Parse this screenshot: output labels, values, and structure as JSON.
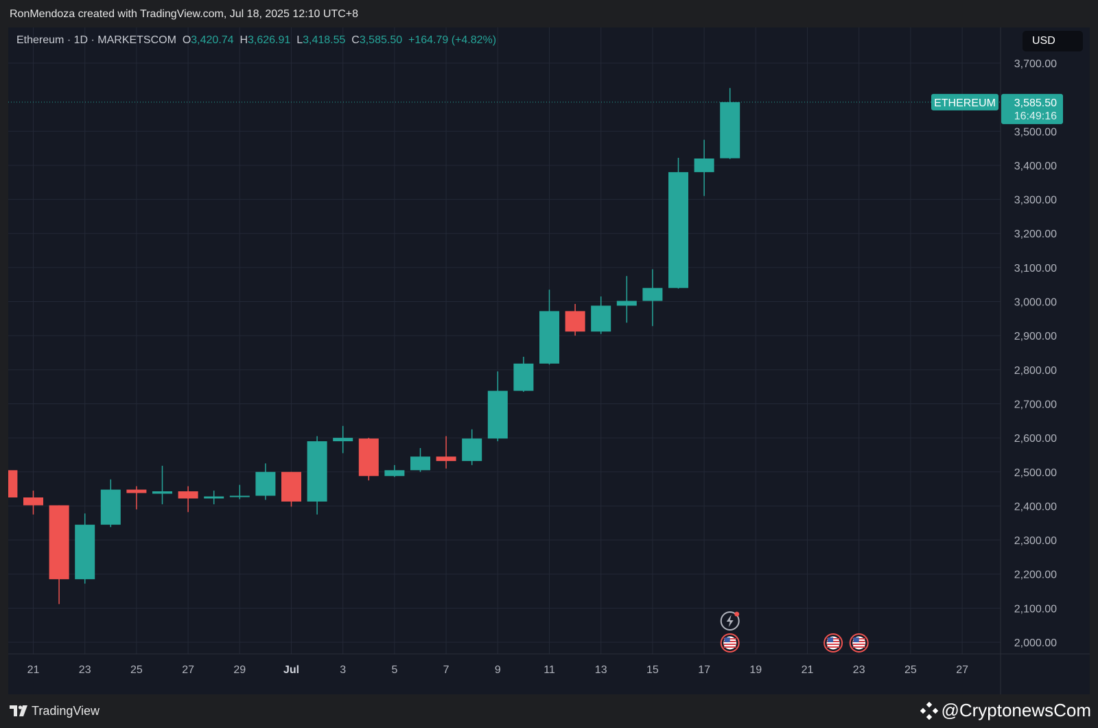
{
  "header": {
    "credit": "RonMendoza created with TradingView.com, Jul 18, 2025 12:10 UTC+8"
  },
  "legend": {
    "symbol": "Ethereum · 1D · MARKETSCOM",
    "o_label": "O",
    "o_value": "3,420.74",
    "h_label": "H",
    "h_value": "3,626.91",
    "l_label": "L",
    "l_value": "3,418.55",
    "c_label": "C",
    "c_value": "3,585.50",
    "change": "+164.79 (+4.82%)"
  },
  "currency_button": "USD",
  "price_tag": {
    "name": "ETHEREUM",
    "price": "3,585.50",
    "countdown": "16:49:16"
  },
  "footer": {
    "brand": "TradingView",
    "watermark": "@CryptonewsCom"
  },
  "colors": {
    "up": "#26a69a",
    "down": "#ef5350",
    "background": "#151924",
    "grid": "#232836",
    "axis_text": "#b2b5be"
  },
  "chart_data": {
    "type": "candlestick",
    "title": "Ethereum · 1D · MARKETSCOM",
    "x_tick_labels": [
      "21",
      "23",
      "25",
      "27",
      "29",
      "Jul",
      "3",
      "5",
      "7",
      "9",
      "11",
      "13",
      "15",
      "17",
      "19",
      "21",
      "23",
      "25",
      "27"
    ],
    "y_tick_labels": [
      "2,000.00",
      "2,100.00",
      "2,200.00",
      "2,300.00",
      "2,400.00",
      "2,500.00",
      "2,600.00",
      "2,700.00",
      "2,800.00",
      "2,900.00",
      "3,000.00",
      "3,100.00",
      "3,200.00",
      "3,300.00",
      "3,400.00",
      "3,500.00",
      "3,700.00"
    ],
    "ylim": [
      1970,
      3770
    ],
    "grid": true,
    "last_price": 3585.5,
    "candles": [
      {
        "date": "2025-06-20",
        "open": 2505,
        "high": 2505,
        "low": 2425,
        "close": 2425
      },
      {
        "date": "2025-06-21",
        "open": 2425,
        "high": 2445,
        "low": 2375,
        "close": 2402
      },
      {
        "date": "2025-06-22",
        "open": 2402,
        "high": 2402,
        "low": 2112,
        "close": 2185
      },
      {
        "date": "2025-06-23",
        "open": 2185,
        "high": 2378,
        "low": 2172,
        "close": 2345
      },
      {
        "date": "2025-06-24",
        "open": 2345,
        "high": 2478,
        "low": 2338,
        "close": 2448
      },
      {
        "date": "2025-06-25",
        "open": 2448,
        "high": 2458,
        "low": 2390,
        "close": 2438
      },
      {
        "date": "2025-06-26",
        "open": 2436,
        "high": 2518,
        "low": 2405,
        "close": 2443
      },
      {
        "date": "2025-06-27",
        "open": 2443,
        "high": 2458,
        "low": 2382,
        "close": 2422
      },
      {
        "date": "2025-06-28",
        "open": 2422,
        "high": 2445,
        "low": 2405,
        "close": 2428
      },
      {
        "date": "2025-06-29",
        "open": 2426,
        "high": 2462,
        "low": 2420,
        "close": 2430
      },
      {
        "date": "2025-06-30",
        "open": 2430,
        "high": 2525,
        "low": 2418,
        "close": 2500
      },
      {
        "date": "2025-07-01",
        "open": 2500,
        "high": 2500,
        "low": 2398,
        "close": 2413
      },
      {
        "date": "2025-07-02",
        "open": 2413,
        "high": 2605,
        "low": 2375,
        "close": 2590
      },
      {
        "date": "2025-07-03",
        "open": 2590,
        "high": 2635,
        "low": 2555,
        "close": 2600
      },
      {
        "date": "2025-07-04",
        "open": 2598,
        "high": 2600,
        "low": 2475,
        "close": 2488
      },
      {
        "date": "2025-07-05",
        "open": 2488,
        "high": 2520,
        "low": 2485,
        "close": 2505
      },
      {
        "date": "2025-07-06",
        "open": 2505,
        "high": 2570,
        "low": 2500,
        "close": 2545
      },
      {
        "date": "2025-07-07",
        "open": 2545,
        "high": 2605,
        "low": 2510,
        "close": 2532
      },
      {
        "date": "2025-07-08",
        "open": 2532,
        "high": 2625,
        "low": 2520,
        "close": 2598
      },
      {
        "date": "2025-07-09",
        "open": 2598,
        "high": 2795,
        "low": 2590,
        "close": 2738
      },
      {
        "date": "2025-07-10",
        "open": 2738,
        "high": 2838,
        "low": 2735,
        "close": 2818
      },
      {
        "date": "2025-07-11",
        "open": 2818,
        "high": 3035,
        "low": 2815,
        "close": 2972
      },
      {
        "date": "2025-07-12",
        "open": 2972,
        "high": 2993,
        "low": 2900,
        "close": 2912
      },
      {
        "date": "2025-07-13",
        "open": 2912,
        "high": 3015,
        "low": 2905,
        "close": 2988
      },
      {
        "date": "2025-07-14",
        "open": 2988,
        "high": 3075,
        "low": 2938,
        "close": 3002
      },
      {
        "date": "2025-07-15",
        "open": 3002,
        "high": 3095,
        "low": 2928,
        "close": 3040
      },
      {
        "date": "2025-07-16",
        "open": 3040,
        "high": 3422,
        "low": 3038,
        "close": 3380
      },
      {
        "date": "2025-07-17",
        "open": 3380,
        "high": 3475,
        "low": 3310,
        "close": 3420
      },
      {
        "date": "2025-07-18",
        "open": 3420.74,
        "high": 3626.91,
        "low": 3418.55,
        "close": 3585.5
      }
    ],
    "event_markers": [
      {
        "date": "2025-07-18",
        "type": "news"
      },
      {
        "date": "2025-07-18",
        "type": "us-economic-event"
      },
      {
        "date": "2025-07-22",
        "type": "us-economic-event"
      },
      {
        "date": "2025-07-23",
        "type": "us-economic-event"
      }
    ]
  }
}
